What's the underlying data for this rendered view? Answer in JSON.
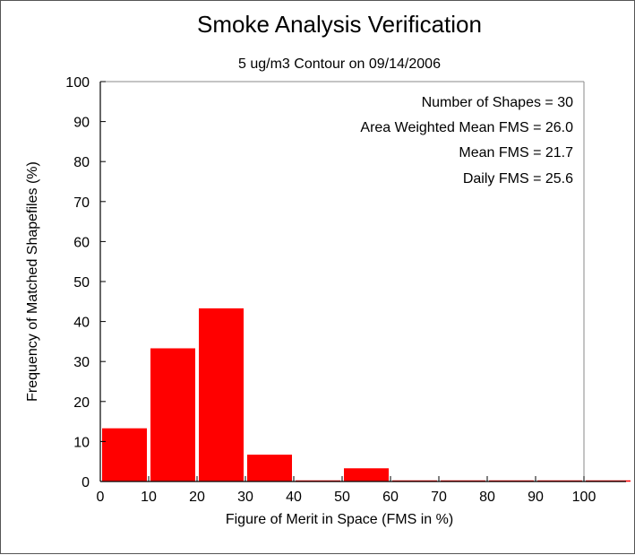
{
  "chart_data": {
    "type": "bar",
    "title": "Smoke Analysis Verification",
    "subtitle": "5 ug/m3 Contour on 09/14/2006",
    "xlabel": "Figure of Merit in Space (FMS in %)",
    "ylabel": "Frequency of Matched Shapefiles (%)",
    "xlim": [
      0,
      110
    ],
    "ylim": [
      0,
      100
    ],
    "x_ticks": [
      "0",
      "10",
      "20",
      "30",
      "40",
      "50",
      "60",
      "70",
      "80",
      "90",
      "100"
    ],
    "y_ticks": [
      "0",
      "10",
      "20",
      "30",
      "40",
      "50",
      "60",
      "70",
      "80",
      "90",
      "100"
    ],
    "bins": [
      {
        "start": 0,
        "end": 10,
        "value": 13.3
      },
      {
        "start": 10,
        "end": 20,
        "value": 33.3
      },
      {
        "start": 20,
        "end": 30,
        "value": 43.3
      },
      {
        "start": 30,
        "end": 40,
        "value": 6.7
      },
      {
        "start": 40,
        "end": 50,
        "value": 0
      },
      {
        "start": 50,
        "end": 60,
        "value": 3.3
      },
      {
        "start": 60,
        "end": 70,
        "value": 0
      },
      {
        "start": 70,
        "end": 80,
        "value": 0
      },
      {
        "start": 80,
        "end": 90,
        "value": 0
      },
      {
        "start": 90,
        "end": 100,
        "value": 0
      },
      {
        "start": 100,
        "end": 110,
        "value": 0
      }
    ],
    "bar_color": "#ff0000",
    "grid": false,
    "annotations": [
      "Number of Shapes = 30",
      "Area Weighted Mean FMS = 26.0",
      "Mean FMS = 21.7",
      "Daily FMS = 25.6"
    ]
  }
}
